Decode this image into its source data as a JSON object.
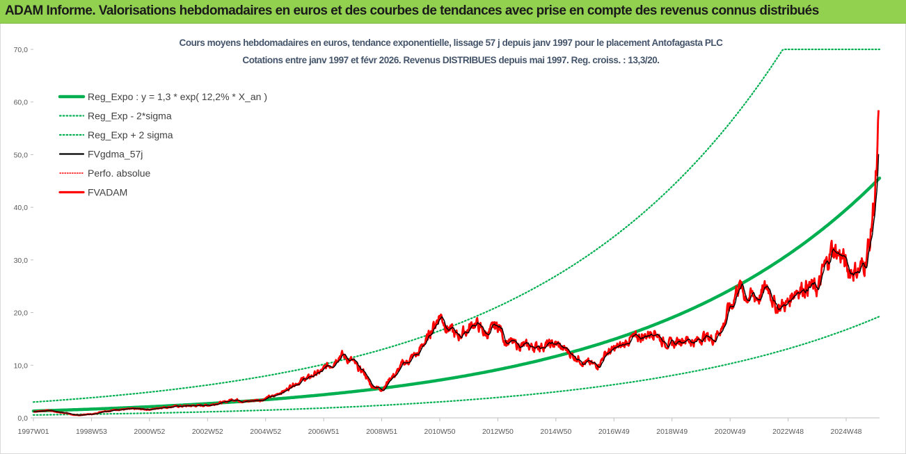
{
  "header": {
    "title": "ADAM Informe. Valorisations hebdomadaires en euros et des courbes de tendances avec prise en compte des revenus connus distribués"
  },
  "chart_data": {
    "type": "line",
    "title": [
      "Cours moyens hebdomadaires en euros, tendance exponentielle, lissage 57 j depuis janv 1997 pour le placement Antofagasta PLC",
      "Cotations entre janv 1997 et févr 2026. Revenus DISTRIBUES depuis mai 1997. Reg. croiss. : 13,3/20."
    ],
    "xlabel": "",
    "ylabel": "",
    "ylim": [
      0,
      70
    ],
    "xlim": [
      1997.0,
      2026.15
    ],
    "y_ticks": [
      "0,0",
      "10,0",
      "20,0",
      "30,0",
      "40,0",
      "50,0",
      "60,0",
      "70,0"
    ],
    "x_ticks": [
      {
        "label": "1997W01",
        "t": 1997.0
      },
      {
        "label": "1998W53",
        "t": 1999.0
      },
      {
        "label": "2000W52",
        "t": 2001.0
      },
      {
        "label": "2002W52",
        "t": 2003.0
      },
      {
        "label": "2004W52",
        "t": 2005.0
      },
      {
        "label": "2006W51",
        "t": 2007.0
      },
      {
        "label": "2008W51",
        "t": 2009.0
      },
      {
        "label": "2010W50",
        "t": 2011.0
      },
      {
        "label": "2012W50",
        "t": 2013.0
      },
      {
        "label": "2014W50",
        "t": 2015.0
      },
      {
        "label": "2016W49",
        "t": 2017.0
      },
      {
        "label": "2018W49",
        "t": 2019.0
      },
      {
        "label": "2020W49",
        "t": 2021.0
      },
      {
        "label": "2022W48",
        "t": 2023.0
      },
      {
        "label": "2024W48",
        "t": 2025.0
      }
    ],
    "grid": false,
    "legend_position": "top-left",
    "series": [
      {
        "name": "Reg_Expo : y = 1,3 * exp( 12,2% * X_an )",
        "color": "#00b050",
        "style": "solid-thick",
        "formula": {
          "a": 1.3,
          "r": 0.122
        }
      },
      {
        "name": "Reg_Exp - 2*sigma",
        "color": "#00b050",
        "style": "dotted",
        "formula": {
          "a": 0.55,
          "r": 0.122
        }
      },
      {
        "name": "Reg_Exp + 2 sigma",
        "color": "#00b050",
        "style": "dotted",
        "formula": {
          "a": 3.0,
          "r": 0.122
        },
        "cap": 70
      },
      {
        "name": "FVgdma_57j",
        "color": "#000000",
        "style": "solid"
      },
      {
        "name": "Perfo. absolue",
        "color": "#ff0000",
        "style": "dotted"
      },
      {
        "name": "FVADAM",
        "color": "#ff0000",
        "style": "solid-thick"
      }
    ],
    "fvadam_anchors": [
      [
        1997.0,
        1.2
      ],
      [
        1997.5,
        1.4
      ],
      [
        1998.0,
        1.0
      ],
      [
        1998.5,
        0.5
      ],
      [
        1999.0,
        0.7
      ],
      [
        1999.5,
        1.3
      ],
      [
        2000.0,
        1.6
      ],
      [
        2000.5,
        1.7
      ],
      [
        2001.0,
        1.6
      ],
      [
        2001.5,
        2.0
      ],
      [
        2002.0,
        2.2
      ],
      [
        2002.5,
        2.3
      ],
      [
        2003.0,
        2.4
      ],
      [
        2003.5,
        2.9
      ],
      [
        2003.9,
        3.5
      ],
      [
        2004.3,
        3.1
      ],
      [
        2004.8,
        3.4
      ],
      [
        2005.2,
        4.0
      ],
      [
        2005.6,
        5.0
      ],
      [
        2006.0,
        6.5
      ],
      [
        2006.4,
        7.5
      ],
      [
        2006.8,
        8.5
      ],
      [
        2007.2,
        10.0
      ],
      [
        2007.6,
        12.0
      ],
      [
        2007.9,
        11.0
      ],
      [
        2008.3,
        9.0
      ],
      [
        2008.7,
        6.0
      ],
      [
        2009.0,
        5.5
      ],
      [
        2009.4,
        8.0
      ],
      [
        2009.8,
        10.5
      ],
      [
        2010.2,
        12.0
      ],
      [
        2010.5,
        14.5
      ],
      [
        2010.8,
        17.5
      ],
      [
        2011.0,
        19.5
      ],
      [
        2011.3,
        17.0
      ],
      [
        2011.6,
        15.5
      ],
      [
        2011.9,
        16.5
      ],
      [
        2012.2,
        18.0
      ],
      [
        2012.6,
        16.0
      ],
      [
        2013.0,
        17.5
      ],
      [
        2013.3,
        14.5
      ],
      [
        2013.7,
        13.8
      ],
      [
        2014.2,
        13.5
      ],
      [
        2014.7,
        13.8
      ],
      [
        2015.0,
        14.0
      ],
      [
        2015.3,
        13.0
      ],
      [
        2015.7,
        11.5
      ],
      [
        2016.0,
        10.5
      ],
      [
        2016.4,
        10.0
      ],
      [
        2016.8,
        12.5
      ],
      [
        2017.2,
        13.5
      ],
      [
        2017.6,
        15.0
      ],
      [
        2018.0,
        15.5
      ],
      [
        2018.4,
        16.5
      ],
      [
        2018.7,
        14.5
      ],
      [
        2019.0,
        14.0
      ],
      [
        2019.4,
        15.0
      ],
      [
        2019.8,
        14.5
      ],
      [
        2020.1,
        15.5
      ],
      [
        2020.4,
        15.0
      ],
      [
        2020.7,
        17.0
      ],
      [
        2021.0,
        21.0
      ],
      [
        2021.3,
        25.0
      ],
      [
        2021.6,
        23.0
      ],
      [
        2022.0,
        23.0
      ],
      [
        2022.3,
        25.0
      ],
      [
        2022.6,
        21.0
      ],
      [
        2022.9,
        21.5
      ],
      [
        2023.3,
        24.5
      ],
      [
        2023.7,
        25.0
      ],
      [
        2024.0,
        24.5
      ],
      [
        2024.3,
        29.0
      ],
      [
        2024.5,
        32.0
      ],
      [
        2024.8,
        31.0
      ],
      [
        2025.1,
        28.0
      ],
      [
        2025.4,
        28.0
      ],
      [
        2025.6,
        29.0
      ],
      [
        2025.8,
        33.0
      ],
      [
        2025.95,
        40.0
      ],
      [
        2026.05,
        46.0
      ],
      [
        2026.12,
        55.0
      ]
    ]
  }
}
